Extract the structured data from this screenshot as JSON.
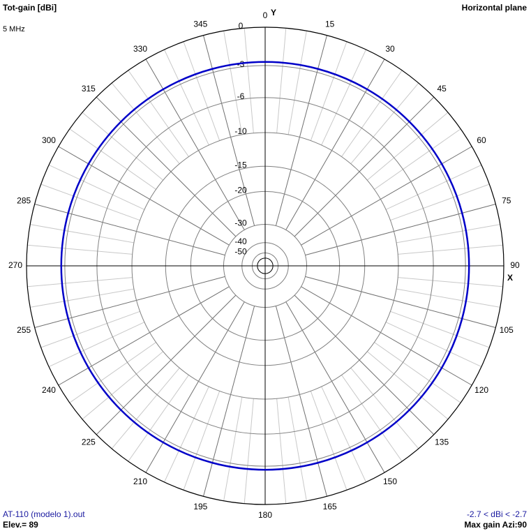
{
  "chart_data": {
    "type": "polar",
    "title": "Tot-gain [dBi]",
    "subtitle": "5 MHz",
    "plane": "Horizontal plane",
    "y_axis_label": "Y",
    "x_axis_label": "X",
    "file": "AT-110 (modelo 1).out",
    "elevation": "Elev.= 89",
    "range_text": "-2.7 < dBi < -2.7",
    "max_gain_text": "Max gain Azi:90",
    "r_scale": "arrl",
    "rlim": [
      -50,
      0
    ],
    "rticks": [
      0,
      -3,
      -6,
      -10,
      -15,
      -20,
      -30,
      -40,
      -50
    ],
    "angle_ticks": [
      0,
      15,
      30,
      45,
      60,
      75,
      90,
      105,
      120,
      135,
      150,
      165,
      180,
      195,
      210,
      225,
      240,
      255,
      270,
      285,
      300,
      315,
      330,
      345
    ],
    "x": [
      0,
      15,
      30,
      45,
      60,
      75,
      90,
      105,
      120,
      135,
      150,
      165,
      180,
      195,
      210,
      225,
      240,
      255,
      270,
      285,
      300,
      315,
      330,
      345
    ],
    "series": [
      {
        "color": "#0000c8",
        "values": [
          -2.7,
          -2.7,
          -2.7,
          -2.7,
          -2.7,
          -2.7,
          -2.7,
          -2.7,
          -2.7,
          -2.7,
          -2.7,
          -2.7,
          -2.7,
          -2.7,
          -2.7,
          -2.7,
          -2.7,
          -2.7,
          -2.7,
          -2.7,
          -2.7,
          -2.7,
          -2.7,
          -2.7
        ]
      }
    ]
  }
}
